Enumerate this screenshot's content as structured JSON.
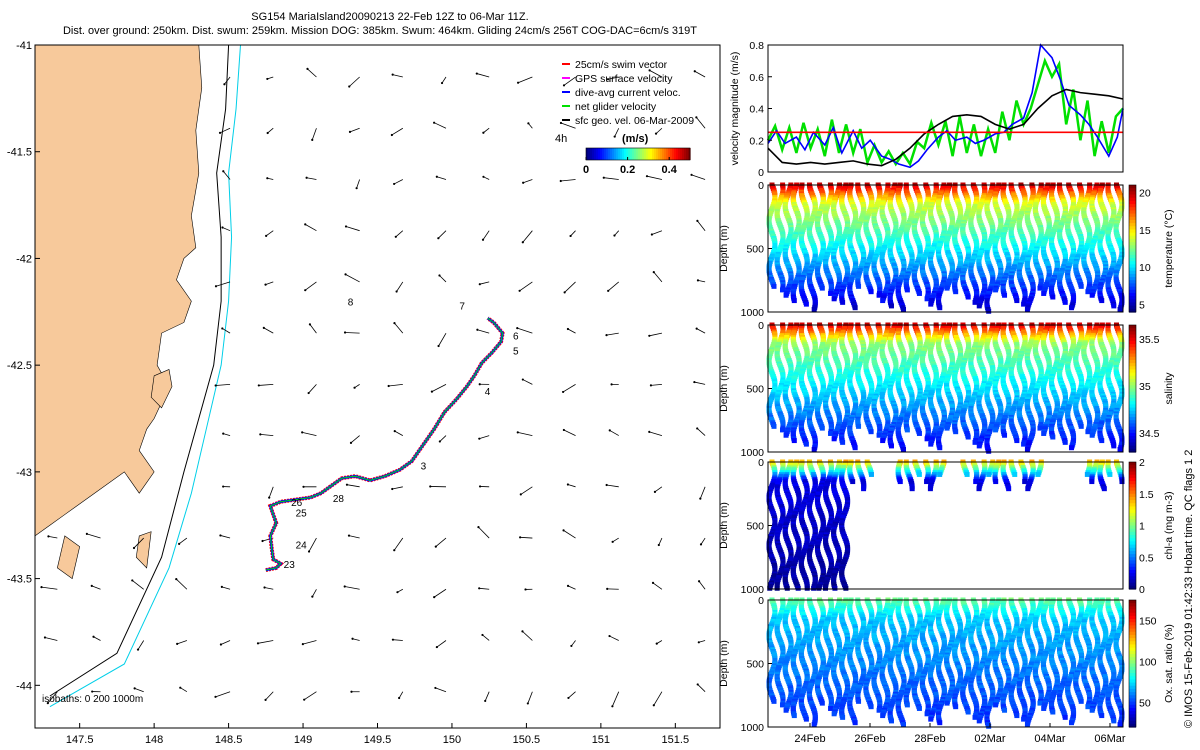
{
  "header": {
    "title_line1": "SG154 MariaIsland20090213 22-Feb 12Z to 06-Mar 11Z.",
    "title_line2": "Dist. over ground: 250km. Dist. swum: 259km. Mission DOG: 385km. Swum: 464km. Gliding 24cm/s 256T COG-DAC=6cm/s 319T"
  },
  "side_credit": "© IMOS 15-Feb-2019 01:42:33 Hobart time. QC flags 1  2",
  "colors": {
    "land": "#f7c99b",
    "track_red": "#ff0000",
    "track_blue": "#0000ff",
    "net_green": "#00e000",
    "isobath_cyan": "#00cfe8",
    "isobath_black": "#000000"
  },
  "chart_data": [
    {
      "type": "map",
      "name": "track-map",
      "xlim": [
        147.2,
        151.8
      ],
      "ylim": [
        -44.2,
        -41
      ],
      "xticks": [
        "147.5",
        "148",
        "148.5",
        "149",
        "149.5",
        "150",
        "150.5",
        "151",
        "151.5"
      ],
      "yticks": [
        "-41",
        "-41.5",
        "-42",
        "-42.5",
        "-43",
        "-43.5",
        "-44"
      ],
      "legend": [
        {
          "label": "25cm/s swim vector",
          "color": "#ff0000"
        },
        {
          "label": "GPS surface velocity",
          "color": "#ff00ff"
        },
        {
          "label": "dive-avg current veloc.",
          "color": "#0000ff"
        },
        {
          "label": "net glider velocity",
          "color": "#00e000"
        },
        {
          "label": "sfc geo. vel. 06-Mar-2009",
          "color": "#000000"
        }
      ],
      "colorbar": {
        "title": "(m/s)",
        "ticks": [
          "0",
          "0.2",
          "0.4"
        ],
        "range": [
          0,
          0.5
        ],
        "note": "4h"
      },
      "isobaths_label": "isobaths: 0   200  1000m",
      "track": [
        [
          148.75,
          -43.46
        ],
        [
          148.82,
          -43.45
        ],
        [
          148.85,
          -43.43
        ],
        [
          148.8,
          -43.41
        ],
        [
          148.79,
          -43.36
        ],
        [
          148.78,
          -43.3
        ],
        [
          148.82,
          -43.24
        ],
        [
          148.8,
          -43.2
        ],
        [
          148.78,
          -43.16
        ],
        [
          148.85,
          -43.14
        ],
        [
          148.95,
          -43.13
        ],
        [
          149.05,
          -43.12
        ],
        [
          149.12,
          -43.1
        ],
        [
          149.2,
          -43.06
        ],
        [
          149.26,
          -43.03
        ],
        [
          149.35,
          -43.02
        ],
        [
          149.45,
          -43.04
        ],
        [
          149.55,
          -43.02
        ],
        [
          149.65,
          -42.99
        ],
        [
          149.73,
          -42.95
        ],
        [
          149.8,
          -42.88
        ],
        [
          149.88,
          -42.8
        ],
        [
          149.95,
          -42.72
        ],
        [
          150.03,
          -42.66
        ],
        [
          150.1,
          -42.6
        ],
        [
          150.15,
          -42.55
        ],
        [
          150.2,
          -42.49
        ],
        [
          150.27,
          -42.44
        ],
        [
          150.33,
          -42.39
        ],
        [
          150.34,
          -42.35
        ],
        [
          150.28,
          -42.3
        ],
        [
          150.24,
          -42.28
        ]
      ],
      "day_labels": [
        {
          "text": "23",
          "lon": 148.87,
          "lat": -43.45
        },
        {
          "text": "24",
          "lon": 148.95,
          "lat": -43.36
        },
        {
          "text": "25",
          "lon": 148.95,
          "lat": -43.21
        },
        {
          "text": "26",
          "lon": 148.92,
          "lat": -43.16
        },
        {
          "text": "28",
          "lon": 149.2,
          "lat": -43.14
        },
        {
          "text": "3",
          "lon": 149.79,
          "lat": -42.99
        },
        {
          "text": "4",
          "lon": 150.22,
          "lat": -42.64
        },
        {
          "text": "5",
          "lon": 150.41,
          "lat": -42.45
        },
        {
          "text": "6",
          "lon": 150.41,
          "lat": -42.38
        },
        {
          "text": "7",
          "lon": 150.05,
          "lat": -42.24
        },
        {
          "text": "8",
          "lon": 149.3,
          "lat": -42.22
        }
      ]
    },
    {
      "type": "line",
      "name": "velocity-panel",
      "ylabel": "velocity magnitude (m/s)",
      "xlim": [
        0,
        12.5
      ],
      "ylim": [
        0,
        0.8
      ],
      "yticks": [
        "0",
        "0.2",
        "0.4",
        "0.6",
        "0.8"
      ],
      "series": [
        {
          "color": "#ff0000",
          "x": [
            0,
            12.5
          ],
          "y": [
            0.25,
            0.25
          ]
        },
        {
          "color": "#000000",
          "x": [
            0,
            0.5,
            1,
            1.5,
            2,
            2.5,
            3,
            3.5,
            4,
            4.5,
            5,
            5.5,
            6,
            6.5,
            7,
            7.5,
            8,
            8.5,
            9,
            9.5,
            10,
            10.5,
            11,
            11.5,
            12,
            12.5
          ],
          "y": [
            0.15,
            0.06,
            0.05,
            0.06,
            0.05,
            0.06,
            0.07,
            0.05,
            0.04,
            0.08,
            0.15,
            0.24,
            0.3,
            0.35,
            0.36,
            0.35,
            0.3,
            0.27,
            0.3,
            0.4,
            0.48,
            0.52,
            0.5,
            0.49,
            0.48,
            0.46
          ]
        },
        {
          "color": "#0000ff",
          "x": [
            0,
            0.3,
            0.6,
            1,
            1.3,
            1.6,
            2,
            2.3,
            2.6,
            3,
            3.3,
            3.6,
            4,
            4.3,
            4.6,
            5,
            5.3,
            5.6,
            6,
            6.3,
            6.6,
            7,
            7.3,
            7.6,
            8,
            8.3,
            8.6,
            9,
            9.3,
            9.6,
            10,
            10.3,
            10.6,
            11,
            11.3,
            11.6,
            12,
            12.3,
            12.5
          ],
          "y": [
            0.18,
            0.26,
            0.18,
            0.22,
            0.14,
            0.25,
            0.17,
            0.28,
            0.12,
            0.26,
            0.15,
            0.2,
            0.1,
            0.08,
            0.05,
            0.03,
            0.07,
            0.14,
            0.22,
            0.26,
            0.2,
            0.22,
            0.18,
            0.2,
            0.24,
            0.25,
            0.3,
            0.34,
            0.5,
            0.8,
            0.72,
            0.58,
            0.42,
            0.36,
            0.3,
            0.22,
            0.1,
            0.22,
            0.4
          ]
        },
        {
          "color": "#00e000",
          "x": [
            0,
            0.25,
            0.5,
            0.75,
            1,
            1.25,
            1.5,
            1.75,
            2,
            2.25,
            2.5,
            2.75,
            3,
            3.25,
            3.5,
            3.75,
            4,
            4.25,
            4.5,
            4.75,
            5,
            5.25,
            5.5,
            5.75,
            6,
            6.25,
            6.5,
            6.75,
            7,
            7.25,
            7.5,
            7.75,
            8,
            8.25,
            8.5,
            8.75,
            9,
            9.25,
            9.5,
            9.75,
            10,
            10.25,
            10.5,
            10.75,
            11,
            11.25,
            11.5,
            11.75,
            12,
            12.25,
            12.5
          ],
          "y": [
            0.2,
            0.29,
            0.14,
            0.28,
            0.12,
            0.31,
            0.15,
            0.27,
            0.1,
            0.33,
            0.12,
            0.3,
            0.12,
            0.27,
            0.06,
            0.17,
            0.06,
            0.13,
            0.05,
            0.12,
            0.05,
            0.19,
            0.15,
            0.31,
            0.17,
            0.32,
            0.1,
            0.35,
            0.12,
            0.3,
            0.1,
            0.27,
            0.12,
            0.38,
            0.2,
            0.45,
            0.3,
            0.4,
            0.55,
            0.7,
            0.6,
            0.68,
            0.3,
            0.52,
            0.2,
            0.45,
            0.1,
            0.32,
            0.12,
            0.35,
            0.4
          ]
        }
      ]
    },
    {
      "type": "heatmap",
      "name": "temperature-panel",
      "ylabel": "Depth (m)",
      "cbar_label": "temperature (°C)",
      "cbar_ticks": [
        "5",
        "10",
        "15",
        "20"
      ],
      "cbar_range": [
        4,
        21
      ],
      "yticks": [
        "0",
        "500",
        "1000"
      ],
      "profile": {
        "surface": 20,
        "mid": 14,
        "deep": 5
      }
    },
    {
      "type": "heatmap",
      "name": "salinity-panel",
      "ylabel": "Depth (m)",
      "cbar_label": "salinity",
      "cbar_ticks": [
        "34.5",
        "35",
        "35.5"
      ],
      "cbar_range": [
        34.3,
        35.65
      ],
      "yticks": [
        "0",
        "500",
        "1000"
      ],
      "profile": {
        "surface": 35.55,
        "mid": 35.0,
        "deep": 34.45
      }
    },
    {
      "type": "heatmap",
      "name": "chla-panel",
      "ylabel": "Depth (m)",
      "cbar_label": "chl-a (mg m-3)",
      "cbar_ticks": [
        "0",
        "0.5",
        "1",
        "1.5",
        "2"
      ],
      "cbar_range": [
        0,
        2
      ],
      "yticks": [
        "0",
        "500",
        "1000"
      ],
      "profile": {
        "surface": 1.4,
        "mid": 0.2,
        "deep": 0.05
      }
    },
    {
      "type": "heatmap",
      "name": "oxygen-panel",
      "ylabel": "Depth (m)",
      "cbar_label": "Ox. sat. ratio (%)",
      "cbar_ticks": [
        "50",
        "100",
        "150"
      ],
      "cbar_range": [
        20,
        175
      ],
      "yticks": [
        "0",
        "500",
        "1000"
      ],
      "xticks": [
        "24Feb",
        "26Feb",
        "28Feb",
        "02Mar",
        "04Mar",
        "06Mar"
      ],
      "profile": {
        "surface": 95,
        "mid": 70,
        "deep": 45
      }
    }
  ]
}
